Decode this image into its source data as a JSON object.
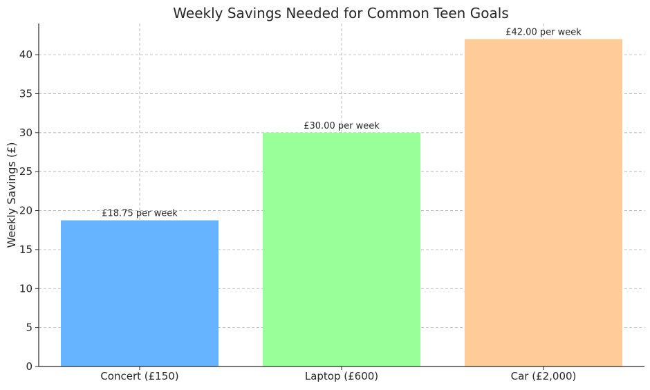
{
  "chart_data": {
    "type": "bar",
    "title": "Weekly Savings Needed for Common Teen Goals",
    "xlabel": "",
    "ylabel": "Weekly Savings (£)",
    "categories": [
      "Concert (£150)",
      "Laptop (£600)",
      "Car (£2,000)"
    ],
    "values": [
      18.75,
      30.0,
      42.0
    ],
    "data_labels": [
      "£18.75 per week",
      "£30.00 per week",
      "£42.00 per week"
    ],
    "colors": [
      "#66b3ff",
      "#99ff99",
      "#ffcc99"
    ],
    "ylim": [
      0,
      44
    ],
    "yticks": [
      0,
      5,
      10,
      15,
      20,
      25,
      30,
      35,
      40
    ],
    "grid": true,
    "grid_style": "dashed"
  }
}
